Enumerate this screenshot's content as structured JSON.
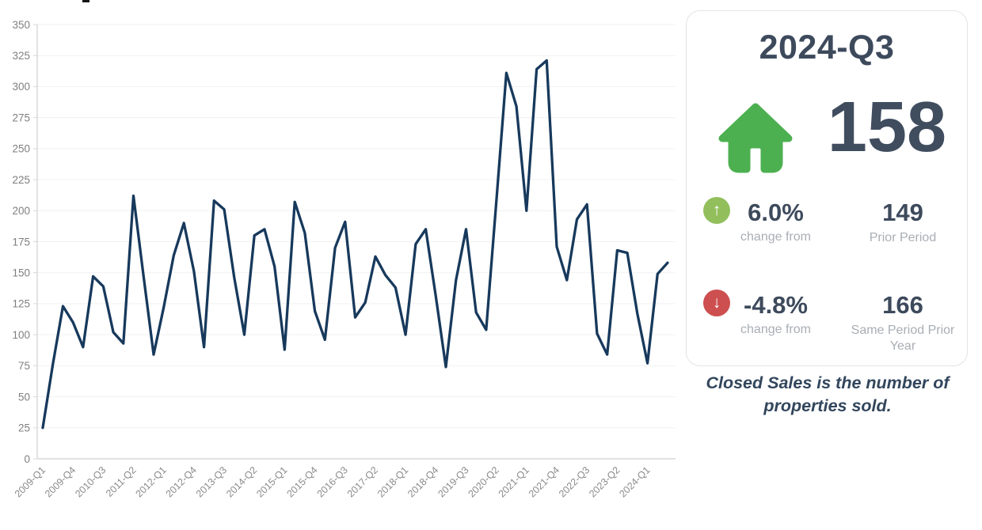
{
  "chart_data": {
    "type": "line",
    "title": "",
    "xlabel": "",
    "ylabel": "",
    "ylim": [
      0,
      350
    ],
    "ytick_step": 25,
    "xtick_every": 3,
    "grid": true,
    "legend": "none",
    "line_color": "#17395c",
    "x": [
      "2009-Q1",
      "2009-Q2",
      "2009-Q3",
      "2009-Q4",
      "2010-Q1",
      "2010-Q2",
      "2010-Q3",
      "2010-Q4",
      "2011-Q1",
      "2011-Q2",
      "2011-Q3",
      "2011-Q4",
      "2012-Q1",
      "2012-Q2",
      "2012-Q3",
      "2012-Q4",
      "2013-Q1",
      "2013-Q2",
      "2013-Q3",
      "2013-Q4",
      "2014-Q1",
      "2014-Q2",
      "2014-Q3",
      "2014-Q4",
      "2015-Q1",
      "2015-Q2",
      "2015-Q3",
      "2015-Q4",
      "2016-Q1",
      "2016-Q2",
      "2016-Q3",
      "2016-Q4",
      "2017-Q1",
      "2017-Q2",
      "2017-Q3",
      "2017-Q4",
      "2018-Q1",
      "2018-Q2",
      "2018-Q3",
      "2018-Q4",
      "2019-Q1",
      "2019-Q2",
      "2019-Q3",
      "2019-Q4",
      "2020-Q1",
      "2020-Q2",
      "2020-Q3",
      "2020-Q4",
      "2021-Q1",
      "2021-Q2",
      "2021-Q3",
      "2021-Q4",
      "2022-Q1",
      "2022-Q2",
      "2022-Q3",
      "2022-Q4",
      "2023-Q1",
      "2023-Q2",
      "2023-Q3",
      "2023-Q4",
      "2024-Q1",
      "2024-Q2",
      "2024-Q3"
    ],
    "series": [
      {
        "name": "Closed Sales",
        "values": [
          25,
          76,
          123,
          110,
          90,
          147,
          139,
          102,
          93,
          212,
          147,
          84,
          122,
          164,
          190,
          151,
          90,
          208,
          201,
          146,
          100,
          180,
          185,
          155,
          88,
          207,
          182,
          119,
          96,
          170,
          191,
          114,
          126,
          163,
          148,
          138,
          100,
          173,
          185,
          131,
          74,
          144,
          185,
          118,
          104,
          207,
          311,
          284,
          200,
          314,
          321,
          171,
          144,
          193,
          205,
          101,
          84,
          168,
          166,
          117,
          77,
          149,
          158
        ]
      }
    ]
  },
  "card": {
    "period": "2024-Q3",
    "value": "158",
    "icon": "home",
    "colors": {
      "home_green": "#4cb050",
      "up_circle": "#92bf5c",
      "down_circle": "#cd4f4f",
      "dark_slate": "#3d4a5c"
    },
    "rows": [
      {
        "direction": "up",
        "arrow": "↑",
        "pct": "6.0%",
        "label": "change from",
        "compare_value": "149",
        "compare_label": "Prior Period"
      },
      {
        "direction": "down",
        "arrow": "↓",
        "pct": "-4.8%",
        "label": "change from",
        "compare_value": "166",
        "compare_label": "Same Period Prior Year"
      }
    ],
    "footnote": "Closed Sales is the number of properties sold."
  }
}
